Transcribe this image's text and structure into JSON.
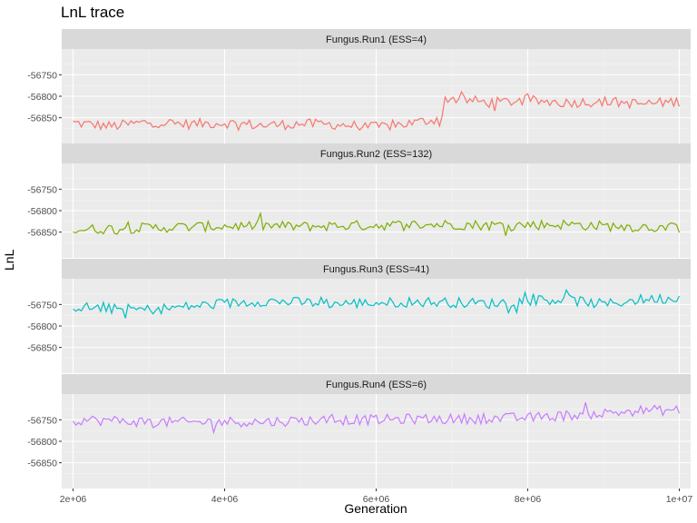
{
  "chart_data": {
    "type": "line",
    "title": "LnL trace",
    "xlabel": "Generation",
    "ylabel": "LnL",
    "xlim": [
      1850000,
      10150000
    ],
    "ylim": [
      -56910,
      -56690
    ],
    "x_ticks": [
      2000000,
      4000000,
      6000000,
      8000000,
      10000000
    ],
    "x_tick_labels": [
      "2e+06",
      "4e+06",
      "6e+06",
      "8e+06",
      "1e+07"
    ],
    "y_ticks": [
      -56750,
      -56800,
      -56850
    ],
    "y_tick_labels": [
      "-56750",
      "-56800",
      "-56850"
    ],
    "grid": true,
    "facets": [
      {
        "label": "Fungus.Run1 (ESS=4)",
        "color": "#F8766D",
        "x": [
          2000000,
          2500000,
          3000000,
          3500000,
          4000000,
          4500000,
          5000000,
          5500000,
          6000000,
          6500000,
          6900000,
          7000000,
          7500000,
          8000000,
          8500000,
          9000000,
          9500000,
          10000000
        ],
        "y": [
          -56862,
          -56870,
          -56860,
          -56865,
          -56862,
          -56868,
          -56864,
          -56866,
          -56872,
          -56862,
          -56850,
          -56805,
          -56815,
          -56810,
          -56815,
          -56812,
          -56818,
          -56812
        ]
      },
      {
        "label": "Fungus.Run2 (ESS=132)",
        "color": "#7CAE00",
        "x": [
          2000000,
          2500000,
          3000000,
          3500000,
          4000000,
          4500000,
          5000000,
          5500000,
          6000000,
          6500000,
          7000000,
          7500000,
          8000000,
          8500000,
          9000000,
          9500000,
          10000000
        ],
        "y": [
          -56845,
          -56842,
          -56840,
          -56838,
          -56836,
          -56835,
          -56837,
          -56835,
          -56834,
          -56833,
          -56832,
          -56834,
          -56833,
          -56832,
          -56836,
          -56838,
          -56840
        ]
      },
      {
        "label": "Fungus.Run3 (ESS=41)",
        "color": "#00BFC4",
        "x": [
          2000000,
          2500000,
          3000000,
          3500000,
          4000000,
          4500000,
          5000000,
          5500000,
          6000000,
          6500000,
          7000000,
          7500000,
          8000000,
          8500000,
          9000000,
          9500000,
          10000000
        ],
        "y": [
          -56755,
          -56760,
          -56762,
          -56755,
          -56748,
          -56742,
          -56745,
          -56748,
          -56746,
          -56744,
          -56745,
          -56748,
          -56740,
          -56738,
          -56750,
          -56738,
          -56735
        ]
      },
      {
        "label": "Fungus.Run4 (ESS=6)",
        "color": "#C77CFF",
        "x": [
          2000000,
          2500000,
          3000000,
          3500000,
          4000000,
          4500000,
          5000000,
          5500000,
          6000000,
          6500000,
          7000000,
          7500000,
          8000000,
          8500000,
          9000000,
          9500000,
          10000000
        ],
        "y": [
          -56750,
          -56752,
          -56755,
          -56756,
          -56754,
          -56755,
          -56752,
          -56750,
          -56750,
          -56748,
          -56748,
          -56747,
          -56745,
          -56740,
          -56735,
          -56728,
          -56728
        ]
      }
    ]
  }
}
